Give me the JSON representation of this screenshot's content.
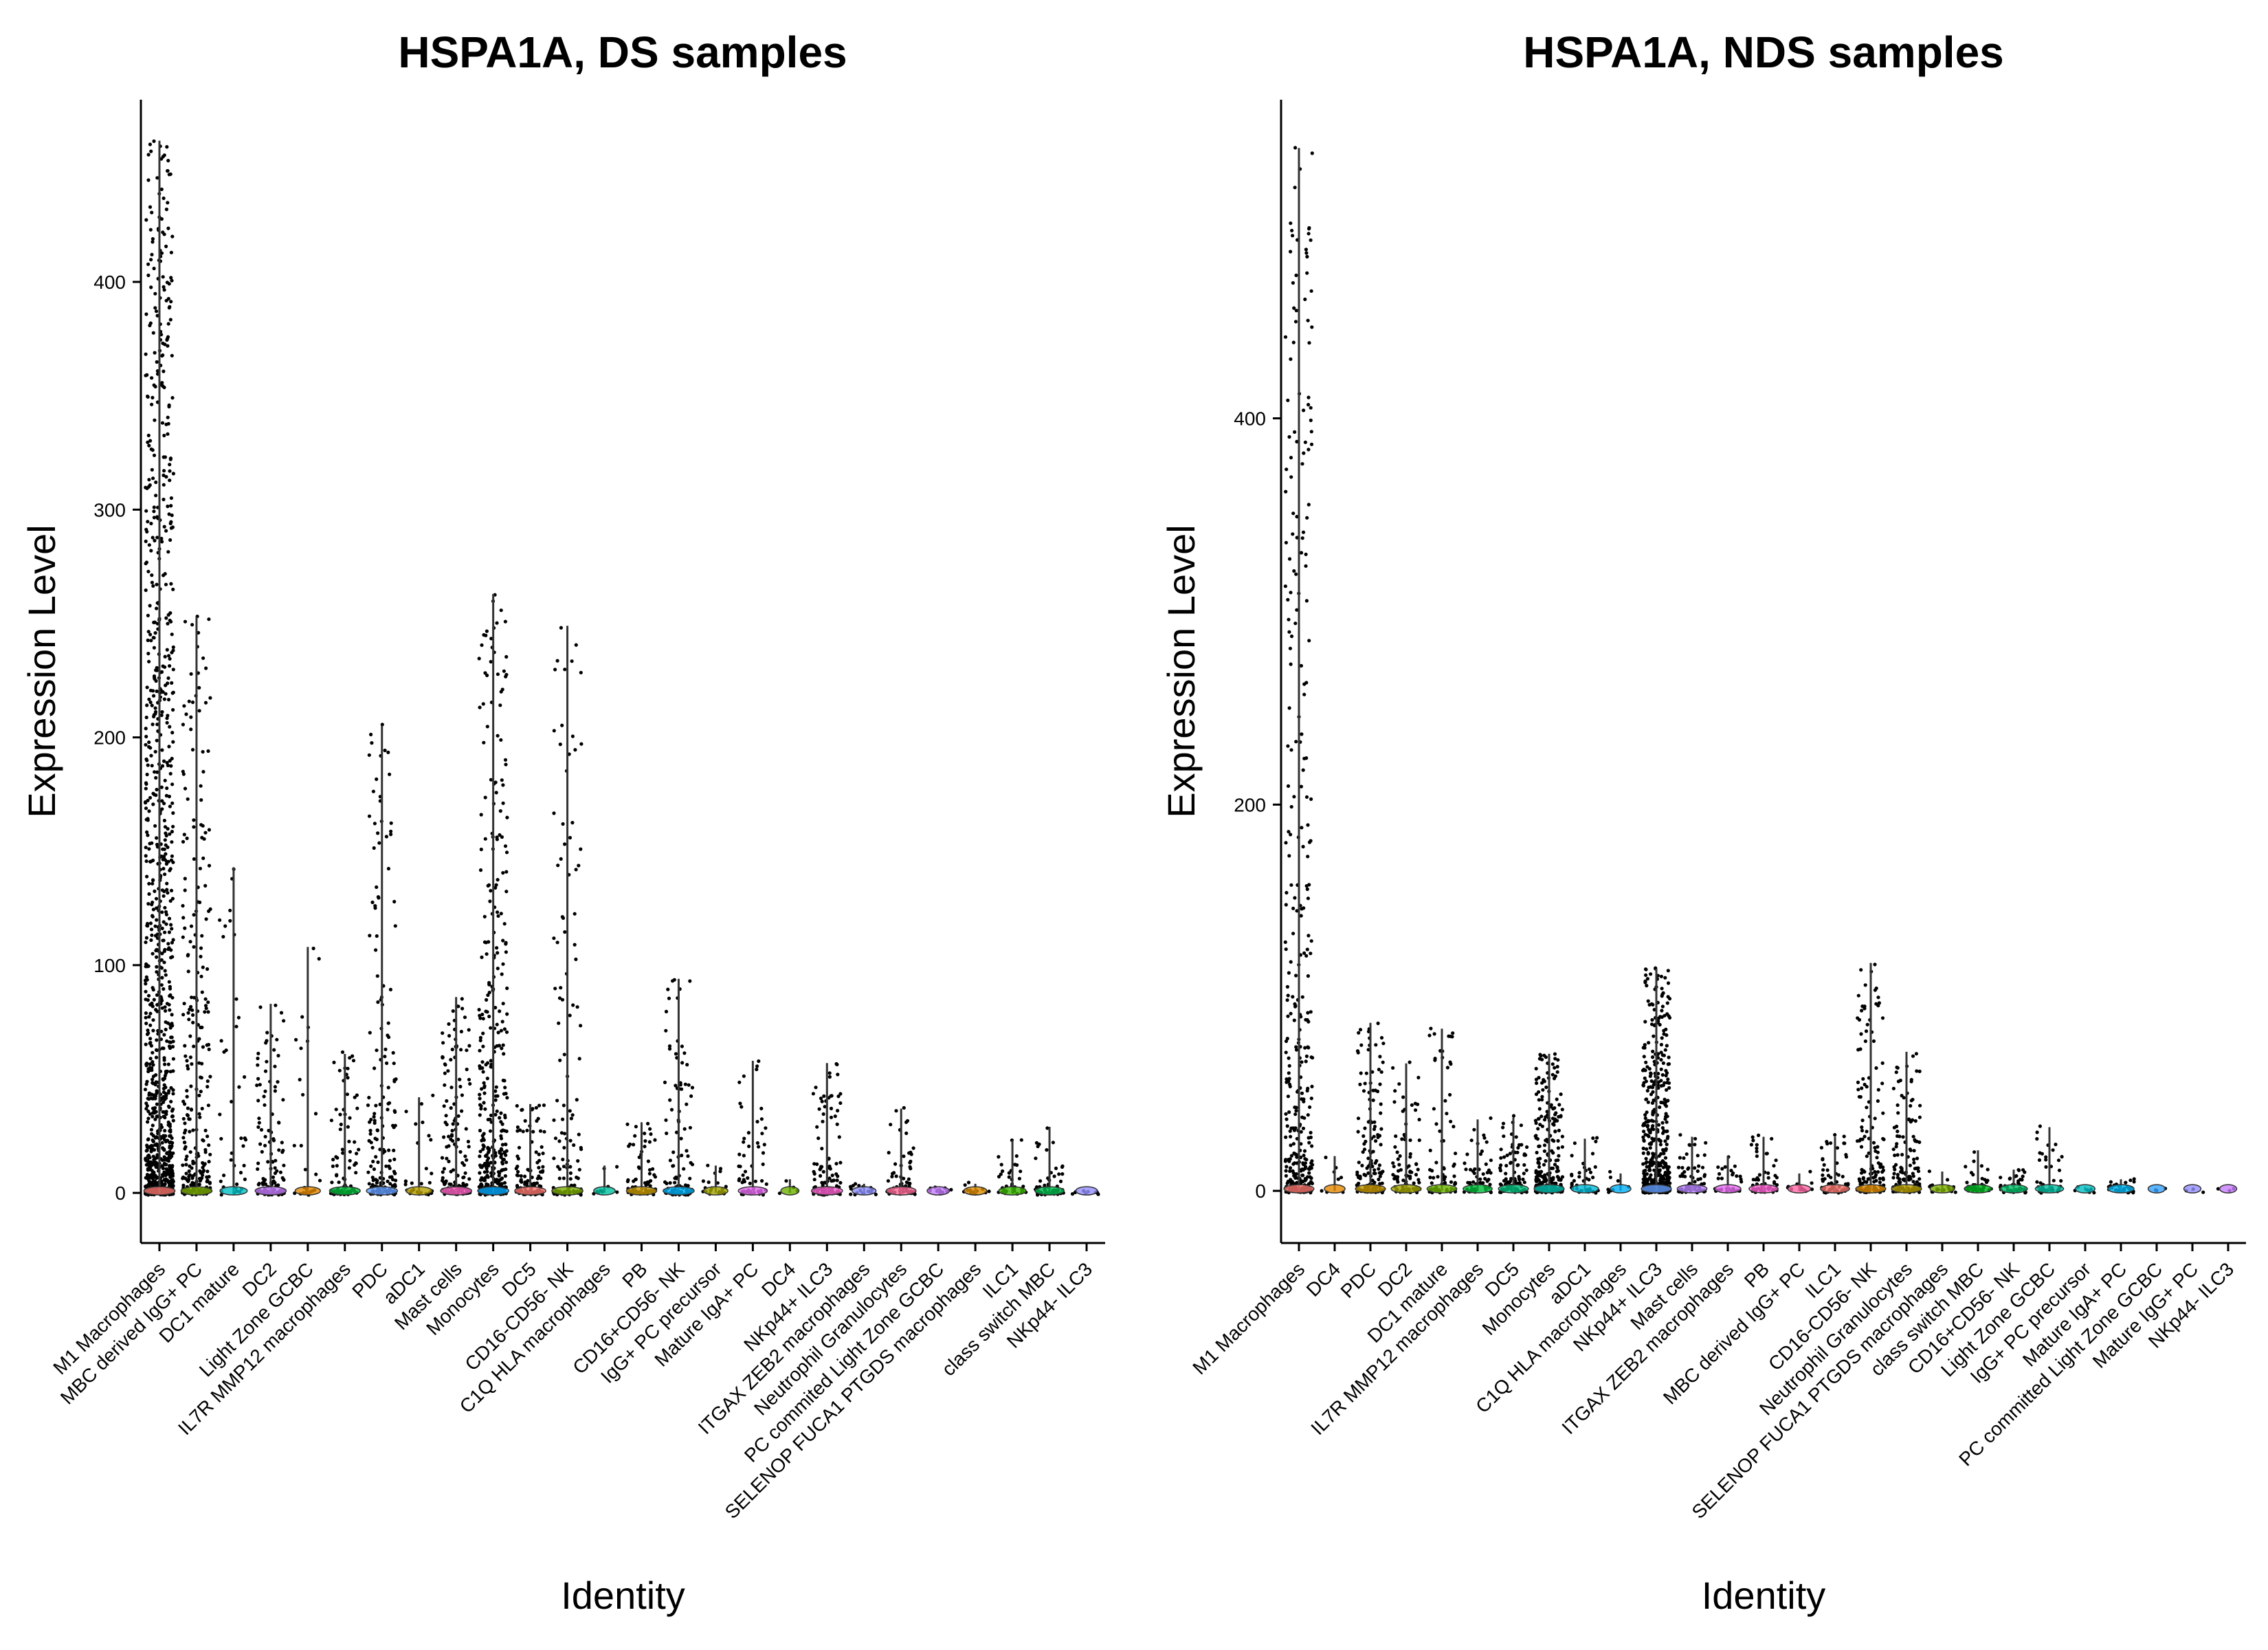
{
  "chart_data": [
    {
      "type": "violin",
      "title": "HSPA1A, DS samples",
      "xlabel": "Identity",
      "ylabel": "Expression Level",
      "ylim": [
        -22,
        480
      ],
      "yticks": [
        0,
        100,
        200,
        300,
        400
      ],
      "grid": false,
      "categories": [
        "M1 Macrophages",
        "MBC derived IgG+ PC",
        "DC1 mature",
        "DC2",
        "Light Zone GCBC",
        "IL7R MMP12 macrophages",
        "PDC",
        "aDC1",
        "Mast cells",
        "Monocytes",
        "DC5",
        "CD16-CD56- NK",
        "C1Q HLA macrophages",
        "PB",
        "CD16+CD56- NK",
        "IgG+ PC precursor",
        "Mature IgA+ PC",
        "DC4",
        "NKp44+ ILC3",
        "ITGAX ZEB2 macrophages",
        "Neutrophil Granulocytes",
        "PC commited Light Zone GCBC",
        "SELENOP FUCA1 PTGDS macrophages",
        "ILC1",
        "class switch MBC",
        "NKp44- ILC3"
      ],
      "max_values": [
        462,
        253,
        143,
        83,
        108,
        61,
        205,
        42,
        86,
        263,
        39,
        249,
        12,
        31,
        94,
        12,
        58,
        6,
        57,
        4,
        37,
        2,
        4,
        23,
        29,
        1
      ],
      "point_density": [
        1200,
        300,
        40,
        130,
        25,
        90,
        180,
        30,
        160,
        420,
        110,
        120,
        10,
        80,
        110,
        20,
        60,
        4,
        110,
        18,
        70,
        12,
        14,
        40,
        60,
        10
      ],
      "violin_colors": [
        "#F8766D",
        "#7CAE00",
        "#00BFC4",
        "#C77CFF",
        "#E58700",
        "#00BA38",
        "#619CFF",
        "#B79F00",
        "#FF61C3",
        "#00A9FF",
        "#F8766D",
        "#7CAE00",
        "#00C19F",
        "#C99800",
        "#00B0F6",
        "#A3A500",
        "#E76BF3",
        "#6BB100",
        "#FD61D1",
        "#8F91FF",
        "#FF6A98",
        "#C77CFF",
        "#DE8C00",
        "#39B600",
        "#00BB4E",
        "#9590FF"
      ]
    },
    {
      "type": "violin",
      "title": "HSPA1A, NDS samples",
      "xlabel": "Identity",
      "ylabel": "Expression Level",
      "ylim": [
        -27,
        565
      ],
      "yticks": [
        0,
        200,
        400
      ],
      "grid": false,
      "categories": [
        "M1 Macrophages",
        "DC4",
        "PDC",
        "DC2",
        "DC1 mature",
        "IL7R MMP12 macrophages",
        "DC5",
        "Monocytes",
        "aDC1",
        "C1Q HLA macrophages",
        "NKp44+ ILC3",
        "Mast cells",
        "ITGAX ZEB2 macrophages",
        "PB",
        "MBC derived IgG+ PC",
        "ILC1",
        "CD16-CD56- NK",
        "Neutrophil Granulocytes",
        "SELENOP FUCA1 PTGDS macrophages",
        "class switch MBC",
        "CD16+CD56- NK",
        "Light Zone GCBC",
        "IgG+ PC precursor",
        "Mature IgA+ PC",
        "PC committed Light Zone GCBC",
        "Mature IgG+ PC",
        "NKp44- ILC3"
      ],
      "max_values": [
        540,
        18,
        87,
        66,
        84,
        37,
        38,
        71,
        27,
        9,
        115,
        28,
        18,
        28,
        9,
        28,
        118,
        72,
        10,
        21,
        11,
        33,
        2,
        6,
        0.5,
        0.5,
        0.5
      ],
      "point_density": [
        380,
        8,
        150,
        90,
        70,
        60,
        100,
        260,
        40,
        8,
        520,
        70,
        30,
        60,
        14,
        60,
        160,
        140,
        20,
        40,
        40,
        50,
        6,
        30,
        3,
        3,
        3
      ],
      "violin_colors": [
        "#F8766D",
        "#E58700",
        "#C99800",
        "#A3A500",
        "#6BB100",
        "#00BA38",
        "#00BF7D",
        "#00C0AF",
        "#00BCD8",
        "#00B0F6",
        "#619CFF",
        "#B983FF",
        "#E76BF3",
        "#FD61D1",
        "#FF67A4",
        "#F8766D",
        "#DE8C00",
        "#B79F00",
        "#7CAE00",
        "#00B81F",
        "#00BE67",
        "#00C1A3",
        "#00BFC4",
        "#00B4EF",
        "#35A2FF",
        "#9590FF",
        "#C77CFF"
      ]
    }
  ]
}
